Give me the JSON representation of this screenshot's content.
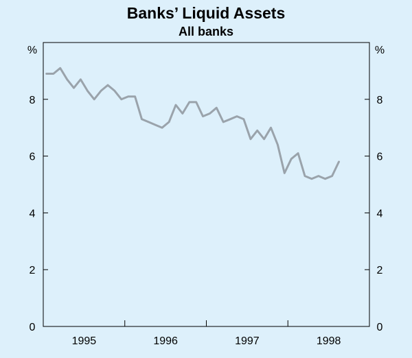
{
  "chart_data": {
    "type": "line",
    "title": "Banks’ Liquid Assets",
    "subtitle": "All banks",
    "ylabel_left": "%",
    "ylabel_right": "%",
    "xlabel": "",
    "ylim": [
      0,
      10
    ],
    "yticks": [
      0,
      2,
      4,
      6,
      8
    ],
    "xlim": [
      1994.5,
      1998.5
    ],
    "x_tick_labels": [
      {
        "label": "1995",
        "x": 1995.0
      },
      {
        "label": "1996",
        "x": 1996.0
      },
      {
        "label": "1997",
        "x": 1997.0
      },
      {
        "label": "1998",
        "x": 1998.0
      }
    ],
    "x_year_boundaries": [
      1995.5,
      1996.5,
      1997.5
    ],
    "grid": false,
    "series": [
      {
        "color": "#9aa3ab",
        "x": [
          1994.54,
          1994.625,
          1994.708,
          1994.792,
          1994.875,
          1994.958,
          1995.042,
          1995.125,
          1995.208,
          1995.292,
          1995.375,
          1995.458,
          1995.542,
          1995.625,
          1995.708,
          1995.792,
          1995.875,
          1995.958,
          1996.042,
          1996.125,
          1996.208,
          1996.292,
          1996.375,
          1996.458,
          1996.542,
          1996.625,
          1996.708,
          1996.792,
          1996.875,
          1996.958,
          1997.042,
          1997.125,
          1997.208,
          1997.292,
          1997.375,
          1997.458,
          1997.542,
          1997.625,
          1997.708,
          1997.792,
          1997.875,
          1997.958,
          1998.042,
          1998.125
        ],
        "y": [
          8.9,
          8.9,
          9.1,
          8.7,
          8.4,
          8.7,
          8.3,
          8.0,
          8.3,
          8.5,
          8.3,
          8.0,
          8.1,
          8.1,
          7.3,
          7.2,
          7.1,
          7.0,
          7.2,
          7.8,
          7.5,
          7.9,
          7.9,
          7.4,
          7.5,
          7.7,
          7.2,
          7.3,
          7.4,
          7.3,
          6.6,
          6.9,
          6.6,
          7.0,
          6.4,
          5.4,
          5.9,
          6.1,
          5.3,
          5.2,
          5.3,
          5.2,
          5.3,
          5.8
        ]
      }
    ]
  },
  "colors": {
    "background": "#ddf0fb",
    "axis": "#000000",
    "line": "#9aa3ab"
  }
}
